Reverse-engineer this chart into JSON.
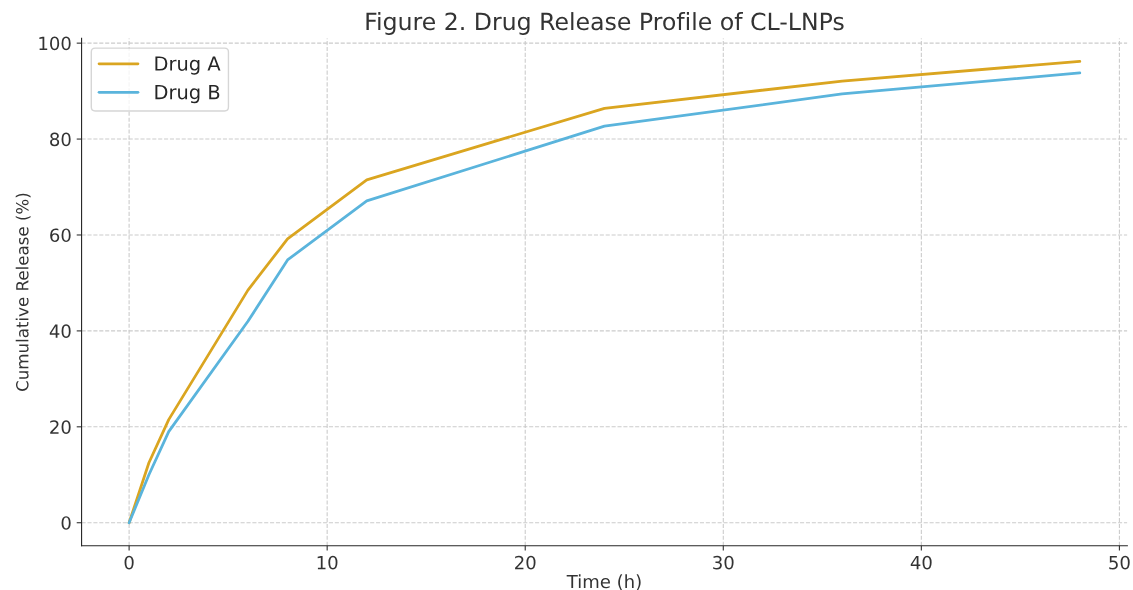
{
  "chart_data": {
    "type": "line",
    "title": "Figure 2. Drug Release Profile of CL-LNPs",
    "xlabel": "Time (h)",
    "ylabel": "Cumulative Release (%)",
    "x": [
      0,
      1,
      2,
      6,
      8,
      12,
      24,
      36,
      48
    ],
    "series": [
      {
        "name": "Drug A",
        "color": "#daa520",
        "values": [
          0,
          12.5,
          21.5,
          48.5,
          59.2,
          71.5,
          86.4,
          92.1,
          96.2
        ]
      },
      {
        "name": "Drug B",
        "color": "#5ab4dc",
        "values": [
          0,
          10,
          19,
          42,
          54.8,
          67.1,
          82.7,
          89.4,
          93.8
        ]
      }
    ],
    "xlim": [
      -2.4,
      50.4
    ],
    "ylim": [
      -4.8,
      101
    ],
    "xticks": [
      0,
      10,
      20,
      30,
      40,
      50
    ],
    "yticks": [
      0,
      20,
      40,
      60,
      80,
      100
    ],
    "grid": true,
    "legend": "top left",
    "marker": "none",
    "line_style": "solid"
  }
}
